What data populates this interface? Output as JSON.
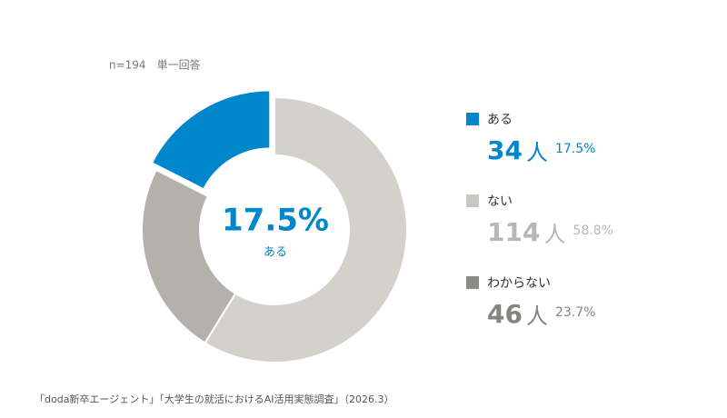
{
  "chart_data": {
    "type": "donut",
    "subtitle": "n=194　単一回答",
    "categories": [
      "ある",
      "ない",
      "わからない"
    ],
    "values": [
      34,
      114,
      46
    ],
    "unit": "人",
    "shares": [
      17.5,
      58.8,
      23.7
    ],
    "share_labels": [
      "17.5%",
      "58.8%",
      "23.7%"
    ],
    "colors": [
      "#0086cb",
      "#d3d1c9",
      "#b3b1a9"
    ],
    "legend_colors": [
      "#0086cb",
      "#c9c7c0",
      "#8a8984"
    ],
    "text_colors": [
      "#0086cb",
      "#b9b7b1",
      "#858580"
    ],
    "source": "「doda新卒エージェント」「大学生の就活におけるAI活用実態調査」（2026.3）"
  }
}
